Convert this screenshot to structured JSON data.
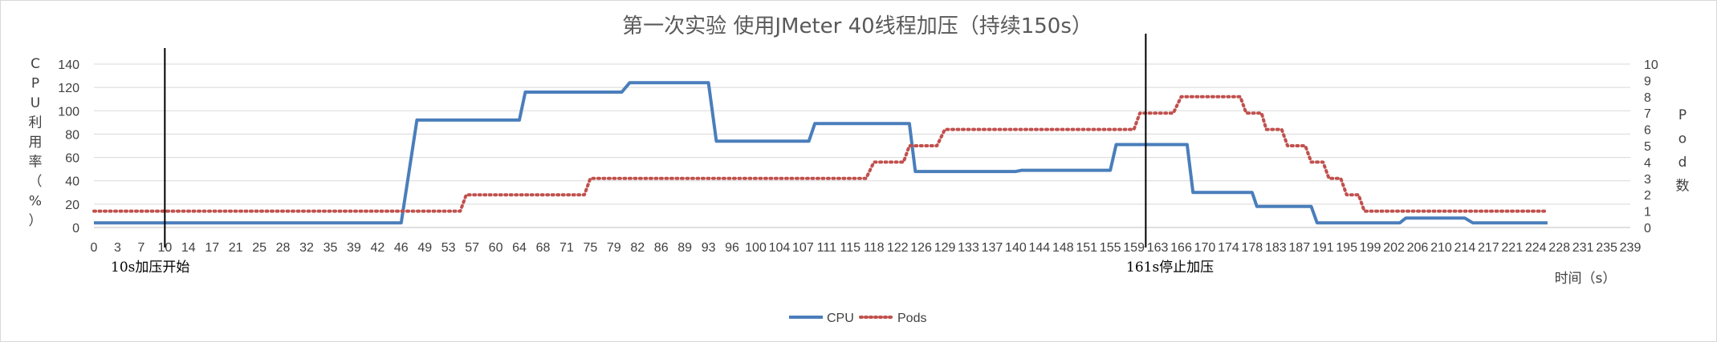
{
  "chart_data": {
    "type": "line",
    "title": "第一次实验 使用JMeter 40线程加压（持续150s）",
    "ylabel_left": "CPU利用率（%）",
    "ylabel_right": "Pod数",
    "xlabel": "时间（s）",
    "ylim_left": [
      0,
      140
    ],
    "yticks_left": [
      0,
      20,
      40,
      60,
      80,
      100,
      120,
      140
    ],
    "ylim_right": [
      0,
      10
    ],
    "yticks_right": [
      0,
      1,
      2,
      3,
      4,
      5,
      6,
      7,
      8,
      9,
      10
    ],
    "grid": true,
    "legend_position": "bottom",
    "x_tick_labels": [
      "0",
      "3",
      "7",
      "10",
      "14",
      "17",
      "21",
      "25",
      "28",
      "32",
      "35",
      "39",
      "42",
      "46",
      "49",
      "53",
      "57",
      "60",
      "64",
      "68",
      "71",
      "75",
      "79",
      "82",
      "86",
      "89",
      "93",
      "96",
      "100",
      "104",
      "107",
      "111",
      "115",
      "118",
      "122",
      "126",
      "129",
      "133",
      "137",
      "140",
      "144",
      "148",
      "151",
      "155",
      "159",
      "163",
      "166",
      "170",
      "174",
      "178",
      "183",
      "187",
      "191",
      "195",
      "199",
      "202",
      "206",
      "210",
      "214",
      "217",
      "221",
      "224",
      "228",
      "231",
      "235",
      "239"
    ],
    "series": [
      {
        "name": "CPU",
        "axis": "left",
        "color": "#4a7ebb",
        "style": "solid",
        "points": [
          [
            0,
            4
          ],
          [
            46,
            4
          ],
          [
            48,
            92
          ],
          [
            64,
            92
          ],
          [
            65,
            116
          ],
          [
            80,
            116
          ],
          [
            81,
            124
          ],
          [
            93,
            124
          ],
          [
            94,
            74
          ],
          [
            108,
            74
          ],
          [
            109,
            89
          ],
          [
            124,
            89
          ],
          [
            125,
            48
          ],
          [
            140,
            48
          ],
          [
            141,
            49
          ],
          [
            155,
            49
          ],
          [
            156,
            71
          ],
          [
            167,
            71
          ],
          [
            168,
            30
          ],
          [
            178,
            30
          ],
          [
            179,
            18
          ],
          [
            189,
            18
          ],
          [
            190,
            4
          ],
          [
            203,
            4
          ],
          [
            204,
            8
          ],
          [
            214,
            8
          ],
          [
            215,
            4
          ],
          [
            226,
            4
          ]
        ]
      },
      {
        "name": "Pods",
        "axis": "right",
        "color": "#c0504d",
        "style": "dotted",
        "points": [
          [
            0,
            1
          ],
          [
            55,
            1
          ],
          [
            56,
            2
          ],
          [
            74,
            2
          ],
          [
            75,
            3
          ],
          [
            117,
            3
          ],
          [
            118,
            4
          ],
          [
            123,
            4
          ],
          [
            124,
            5
          ],
          [
            128,
            5
          ],
          [
            129,
            6
          ],
          [
            159,
            6
          ],
          [
            160,
            7
          ],
          [
            165,
            7
          ],
          [
            166,
            8
          ],
          [
            176,
            8
          ],
          [
            177,
            7
          ],
          [
            180,
            7
          ],
          [
            181,
            6
          ],
          [
            184,
            6
          ],
          [
            185,
            5
          ],
          [
            188,
            5
          ],
          [
            189,
            4
          ],
          [
            191,
            4
          ],
          [
            192,
            3
          ],
          [
            194,
            3
          ],
          [
            195,
            2
          ],
          [
            197,
            2
          ],
          [
            198,
            1
          ],
          [
            226,
            1
          ]
        ]
      }
    ],
    "markers": [
      {
        "x": 10,
        "label": "10s加压开始"
      },
      {
        "x": 161,
        "label": "161s停止加压"
      }
    ]
  }
}
